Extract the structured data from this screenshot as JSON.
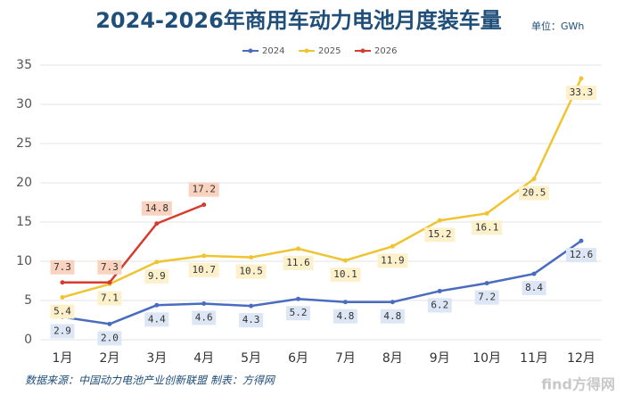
{
  "chart_data": {
    "type": "line",
    "title": "2024-2026年商用车动力电池月度装车量",
    "unit": "单位：GWh",
    "source": "数据来源：中国动力电池产业创新联盟 制表：方得网",
    "watermark": "find方得网",
    "categories": [
      "1月",
      "2月",
      "3月",
      "4月",
      "5月",
      "6月",
      "7月",
      "8月",
      "9月",
      "10月",
      "11月",
      "12月"
    ],
    "series": [
      {
        "name": "2024",
        "color": "#4a6cc0",
        "label_bg": "#dde6f4",
        "values": [
          2.9,
          2.0,
          4.4,
          4.6,
          4.3,
          5.2,
          4.8,
          4.8,
          6.2,
          7.2,
          8.4,
          12.6
        ],
        "value_labels": [
          "2.9",
          "2.0",
          "4.4",
          "4.6",
          "4.3",
          "5.2",
          "4.8",
          "4.8",
          "6.2",
          "7.2",
          "8.4",
          "12.6"
        ]
      },
      {
        "name": "2025",
        "color": "#f0c330",
        "label_bg": "#fdf1cc",
        "values": [
          5.4,
          7.1,
          9.9,
          10.7,
          10.5,
          11.6,
          10.1,
          11.9,
          15.2,
          16.1,
          20.5,
          33.3
        ],
        "value_labels": [
          "5.4",
          "7.1",
          "9.9",
          "10.7",
          "10.5",
          "11.6",
          "10.1",
          "11.9",
          "15.2",
          "16.1",
          "20.5",
          "33.3"
        ]
      },
      {
        "name": "2026",
        "color": "#d63b2f",
        "label_bg": "#f9d3bf",
        "values": [
          7.3,
          7.3,
          14.8,
          17.2,
          null,
          null,
          null,
          null,
          null,
          null,
          null,
          null
        ],
        "value_labels": [
          "7.3",
          "7.3",
          "14.8",
          "17.2",
          null,
          null,
          null,
          null,
          null,
          null,
          null,
          null
        ]
      }
    ],
    "ylim": [
      0,
      35
    ],
    "yticks": [
      0,
      5,
      10,
      15,
      20,
      25,
      30,
      35
    ],
    "grid": true
  }
}
